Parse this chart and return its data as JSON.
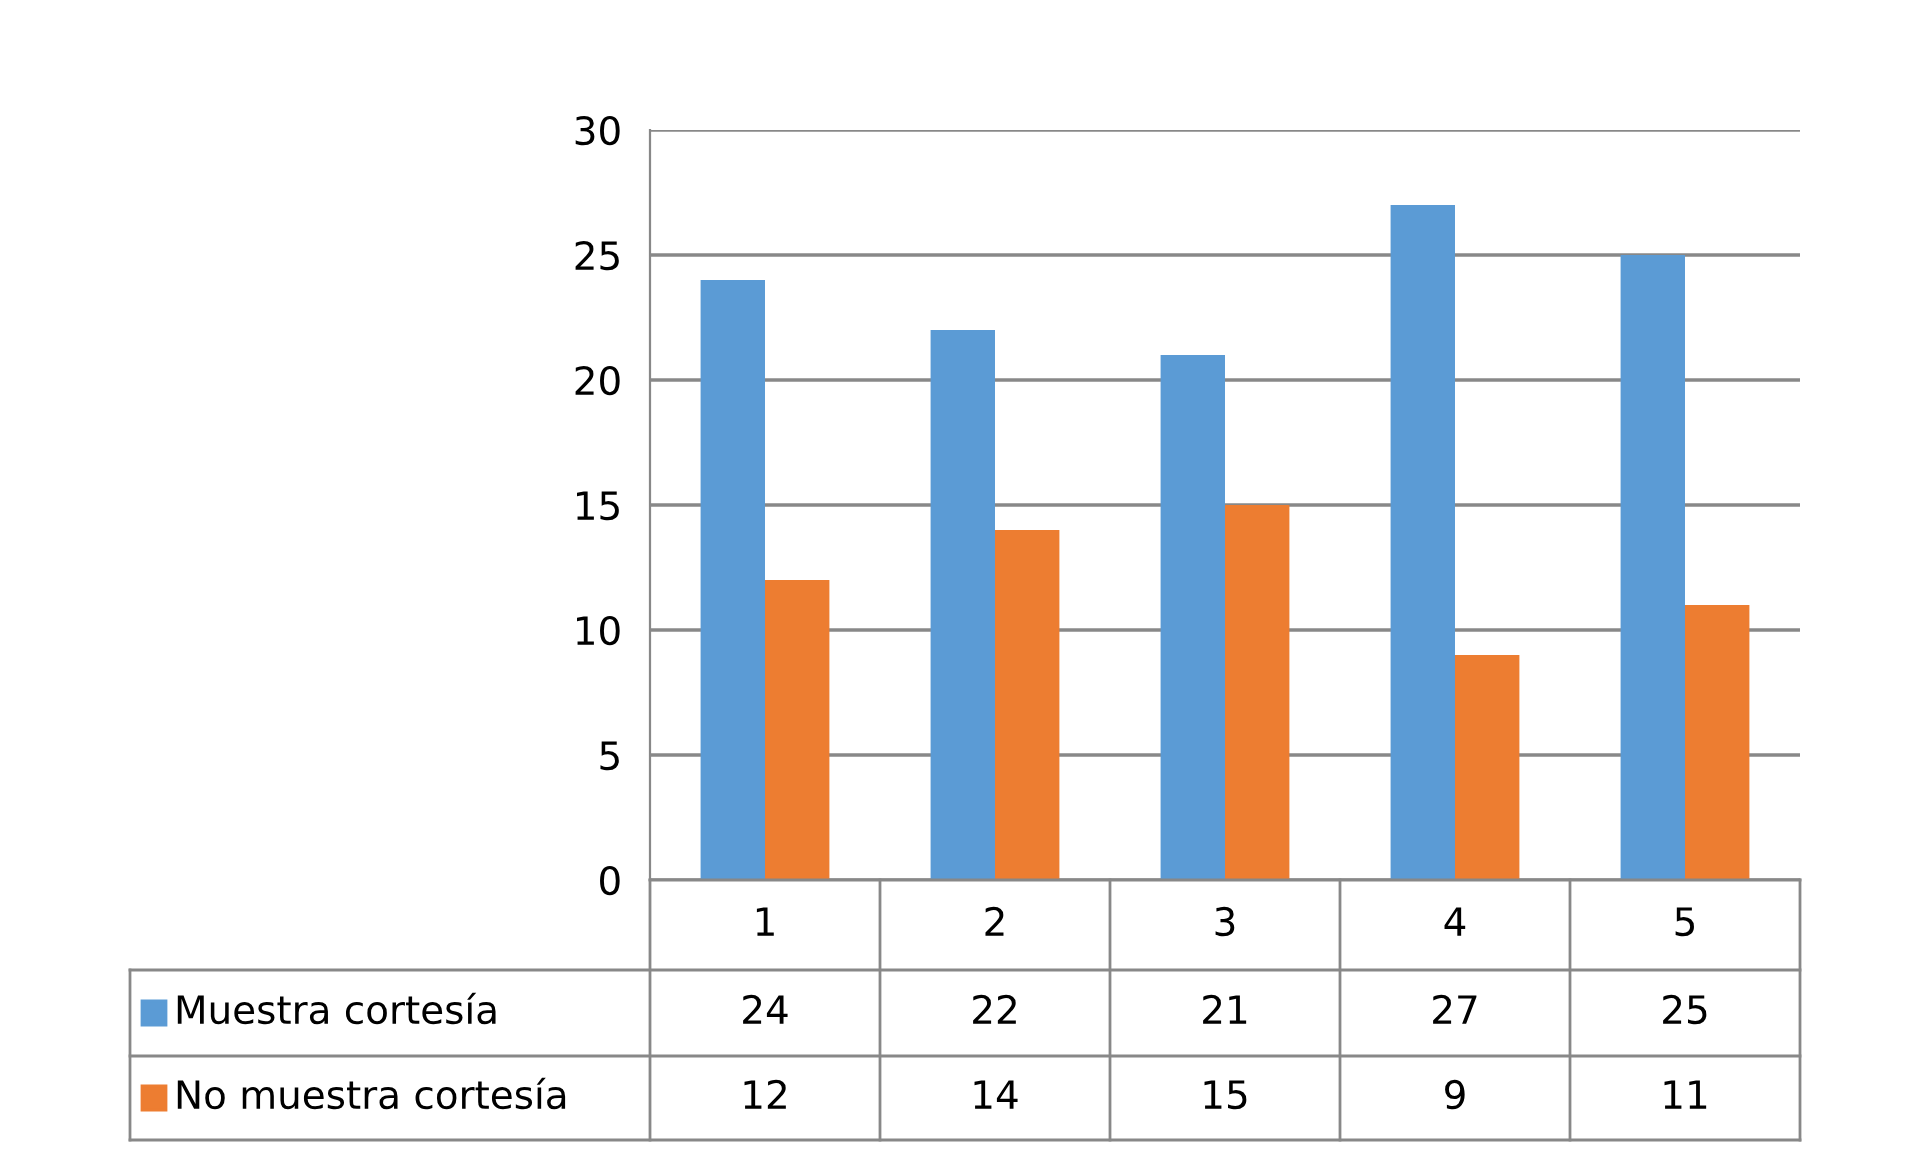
{
  "chart_data": {
    "type": "bar",
    "categories": [
      "1",
      "2",
      "3",
      "4",
      "5"
    ],
    "series": [
      {
        "name": "Muestra cortesía",
        "color": "#5b9bd5",
        "values": [
          24,
          22,
          21,
          27,
          25
        ]
      },
      {
        "name": "No muestra cortesía",
        "color": "#ed7d31",
        "values": [
          12,
          14,
          15,
          9,
          11
        ]
      }
    ],
    "ylim": [
      0,
      30
    ],
    "yticks": [
      0,
      5,
      10,
      15,
      20,
      25,
      30
    ],
    "grid": "y",
    "legend": "bottom",
    "data_labels": true
  }
}
